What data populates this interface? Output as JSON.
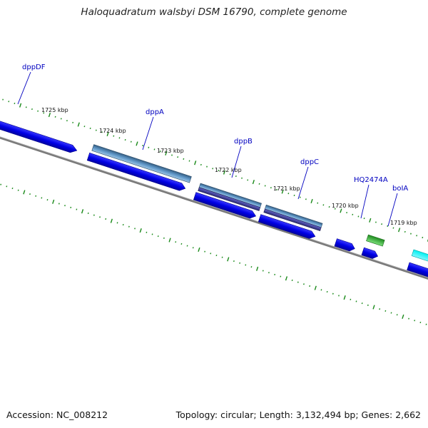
{
  "title": "Haloquadratum walsbyi DSM 16790, complete genome",
  "footer": {
    "accession": "Accession: NC_008212",
    "stats": "Topology: circular; Length: 3,132,494 bp; Genes: 2,662"
  },
  "colors": {
    "backbone": "#808080",
    "gene_blue": "#0000e6",
    "gene_steel": "#4f86b5",
    "gene_purple": "#3f3f96",
    "gene_green": "#2fb82f",
    "gene_cyan": "#00e6e6",
    "ticks": "#1a8a1a",
    "label": "#0000c0"
  },
  "genes": [
    {
      "name": "dppDF"
    },
    {
      "name": "dppA"
    },
    {
      "name": "dppB"
    },
    {
      "name": "dppC"
    },
    {
      "name": "HQ2474A"
    },
    {
      "name": "boIA"
    }
  ],
  "ticks": [
    {
      "label": "1725 kbp"
    },
    {
      "label": "1724 kbp"
    },
    {
      "label": "1723 kbp"
    },
    {
      "label": "1722 kbp"
    },
    {
      "label": "1721 kbp"
    },
    {
      "label": "1720 kbp"
    },
    {
      "label": "1719 kbp"
    }
  ]
}
